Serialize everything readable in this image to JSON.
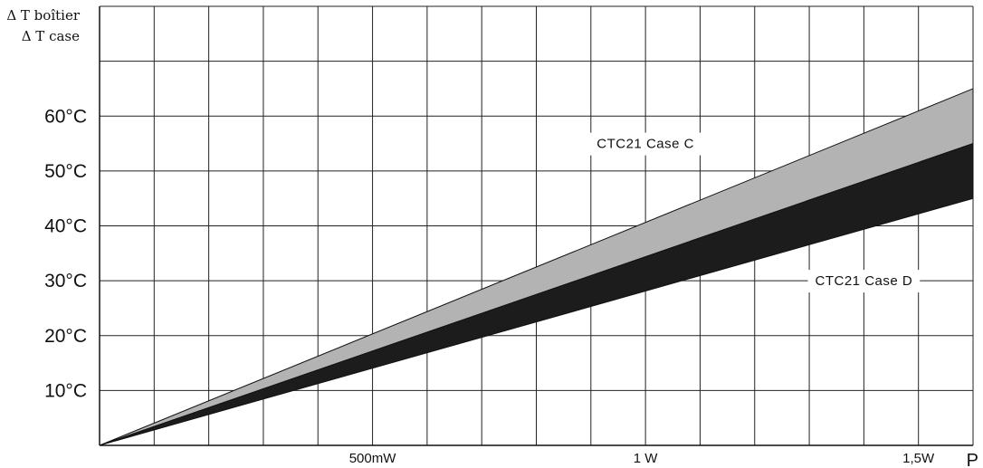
{
  "chart_data": {
    "type": "area",
    "y_axis_title_lines": [
      "Δ T boîtier",
      "Δ T case"
    ],
    "x_axis_title": "P",
    "y_ticks": [
      {
        "value": 10,
        "label": "10°C"
      },
      {
        "value": 20,
        "label": "20°C"
      },
      {
        "value": 30,
        "label": "30°C"
      },
      {
        "value": 40,
        "label": "40°C"
      },
      {
        "value": 50,
        "label": "50°C"
      },
      {
        "value": 60,
        "label": "60°C"
      }
    ],
    "x_ticks": [
      {
        "value": 0.5,
        "label": "500mW"
      },
      {
        "value": 1.0,
        "label": "1 W"
      },
      {
        "value": 1.5,
        "label": "1,5W"
      }
    ],
    "xlim": [
      0,
      1.6
    ],
    "ylim": [
      0,
      80
    ],
    "x_grid_step": 0.1,
    "y_grid_step": 10,
    "grid": true,
    "series": [
      {
        "name": "CTC21 Case C",
        "x": [
          0,
          1.6
        ],
        "y_upper": [
          0,
          65
        ],
        "y_lower": [
          0,
          55
        ],
        "fill": "#b3b3b3"
      },
      {
        "name": "CTC21 Case D",
        "x": [
          0,
          1.6
        ],
        "y_upper": [
          0,
          55
        ],
        "y_lower": [
          0,
          45
        ],
        "fill": "#1c1c1c"
      }
    ],
    "annotations": [
      {
        "text": "CTC21 Case C",
        "x": 1.0,
        "y": 55
      },
      {
        "text": "CTC21 Case D",
        "x": 1.4,
        "y": 30
      }
    ]
  }
}
